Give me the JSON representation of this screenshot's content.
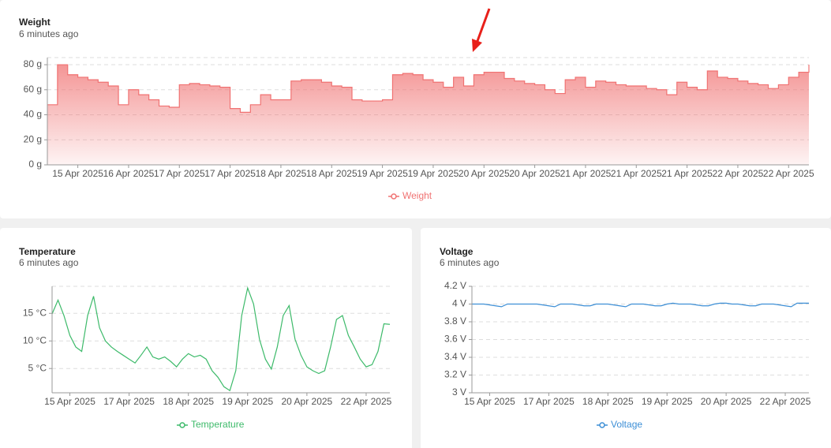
{
  "chart_data": [
    {
      "type": "line",
      "title": "Weight",
      "subtitle": "6 minutes ago",
      "step": true,
      "area": true,
      "grid": true,
      "categories": [
        null,
        null,
        null,
        "15 Apr 2025",
        null,
        null,
        null,
        null,
        "16 Apr 2025",
        null,
        null,
        null,
        null,
        "17 Apr 2025",
        null,
        null,
        null,
        null,
        "17 Apr 2025",
        null,
        null,
        null,
        null,
        "18 Apr 2025",
        null,
        null,
        null,
        null,
        "18 Apr 2025",
        null,
        null,
        null,
        null,
        "19 Apr 2025",
        null,
        null,
        null,
        null,
        "19 Apr 2025",
        null,
        null,
        null,
        null,
        "20 Apr 2025",
        null,
        null,
        null,
        null,
        "20 Apr 2025",
        null,
        null,
        null,
        null,
        "21 Apr 2025",
        null,
        null,
        null,
        null,
        "21 Apr 2025",
        null,
        null,
        null,
        null,
        "21 Apr 2025",
        null,
        null,
        null,
        null,
        "22 Apr 2025",
        null,
        null,
        null,
        null,
        "22 Apr 2025",
        null,
        null
      ],
      "series": [
        {
          "name": "Weight",
          "color": "#f07272",
          "values": [
            48,
            80,
            72,
            70,
            68,
            66,
            63,
            48,
            60,
            56,
            52,
            47,
            46,
            64,
            65,
            64,
            63,
            62,
            45,
            42,
            48,
            56,
            52,
            52,
            67,
            68,
            68,
            66,
            63,
            62,
            52,
            51,
            51,
            52,
            72,
            73,
            72,
            68,
            66,
            62,
            70,
            63,
            72,
            74,
            74,
            69,
            67,
            65,
            64,
            60,
            57,
            68,
            70,
            62,
            67,
            66,
            64,
            63,
            63,
            61,
            60,
            56,
            66,
            62,
            60,
            75,
            70,
            69,
            67,
            65,
            64,
            61,
            64,
            70,
            74,
            80
          ]
        }
      ],
      "ylim": [
        0,
        85.7
      ],
      "yticks": [
        {
          "value": 0,
          "label": "0 g"
        },
        {
          "value": 20,
          "label": "20 g"
        },
        {
          "value": 40,
          "label": "40 g"
        },
        {
          "value": 60,
          "label": "60 g"
        },
        {
          "value": 80,
          "label": "80 g"
        }
      ]
    },
    {
      "type": "line",
      "title": "Temperature",
      "subtitle": "6 minutes ago",
      "step": false,
      "area": false,
      "grid": true,
      "categories": [
        null,
        null,
        null,
        "15 Apr 2025",
        null,
        null,
        null,
        null,
        null,
        null,
        null,
        null,
        null,
        "17 Apr 2025",
        null,
        null,
        null,
        null,
        null,
        null,
        null,
        null,
        null,
        "18 Apr 2025",
        null,
        null,
        null,
        null,
        null,
        null,
        null,
        null,
        null,
        "19 Apr 2025",
        null,
        null,
        null,
        null,
        null,
        null,
        null,
        null,
        null,
        "20 Apr 2025",
        null,
        null,
        null,
        null,
        null,
        null,
        null,
        null,
        null,
        "22 Apr 2025",
        null,
        null,
        null,
        null
      ],
      "series": [
        {
          "name": "Temperature",
          "color": "#3dba6a",
          "values": [
            14.9,
            17.4,
            14.6,
            11,
            8.9,
            8.1,
            14.6,
            18.1,
            12.4,
            10,
            8.9,
            8.1,
            7.4,
            6.7,
            6,
            7.4,
            8.9,
            7.1,
            6.7,
            7.1,
            6.3,
            5.3,
            6.7,
            7.7,
            7.1,
            7.4,
            6.7,
            4.6,
            3.4,
            1.7,
            1,
            4.6,
            14.6,
            19.6,
            16.7,
            10.3,
            6.7,
            4.9,
            8.9,
            14.6,
            16.4,
            10.3,
            7.4,
            5.3,
            4.6,
            4.1,
            4.6,
            8.9,
            13.9,
            14.6,
            11,
            8.9,
            6.7,
            5.3,
            5.7,
            8.1,
            13.1,
            13
          ]
        }
      ],
      "ylim": [
        0.6,
        19.9
      ],
      "yticks": [
        {
          "value": 5,
          "label": "5 °C"
        },
        {
          "value": 10,
          "label": "10 °C"
        },
        {
          "value": 15,
          "label": "15 °C"
        }
      ]
    },
    {
      "type": "line",
      "title": "Voltage",
      "subtitle": "6 minutes ago",
      "step": false,
      "area": false,
      "grid": true,
      "categories": [
        null,
        null,
        null,
        "15 Apr 2025",
        null,
        null,
        null,
        null,
        null,
        null,
        null,
        null,
        null,
        "17 Apr 2025",
        null,
        null,
        null,
        null,
        null,
        null,
        null,
        null,
        null,
        "18 Apr 2025",
        null,
        null,
        null,
        null,
        null,
        null,
        null,
        null,
        null,
        "19 Apr 2025",
        null,
        null,
        null,
        null,
        null,
        null,
        null,
        null,
        null,
        "20 Apr 2025",
        null,
        null,
        null,
        null,
        null,
        null,
        null,
        null,
        null,
        "22 Apr 2025",
        null,
        null,
        null,
        null
      ],
      "series": [
        {
          "name": "Voltage",
          "color": "#3d8fd6",
          "values": [
            4,
            4,
            4,
            3.99,
            3.98,
            3.97,
            4,
            4,
            4,
            4,
            4,
            4,
            3.99,
            3.98,
            3.97,
            4,
            4,
            4,
            3.99,
            3.98,
            3.98,
            4,
            4,
            4,
            3.99,
            3.98,
            3.97,
            4,
            4,
            4,
            3.99,
            3.98,
            3.98,
            4,
            4.01,
            4,
            4,
            4,
            3.99,
            3.98,
            3.98,
            4,
            4.01,
            4.01,
            4,
            4,
            3.99,
            3.98,
            3.98,
            4,
            4,
            4,
            3.99,
            3.98,
            3.97,
            4.01,
            4.01,
            4.01
          ]
        }
      ],
      "ylim": [
        3,
        4.2
      ],
      "yticks": [
        {
          "value": 3,
          "label": "3 V"
        },
        {
          "value": 3.2,
          "label": "3.2 V"
        },
        {
          "value": 3.4,
          "label": "3.4 V"
        },
        {
          "value": 3.6,
          "label": "3.6 V"
        },
        {
          "value": 3.8,
          "label": "3.8 V"
        },
        {
          "value": 4,
          "label": "4 V"
        },
        {
          "value": 4.2,
          "label": "4.2 V"
        }
      ]
    }
  ]
}
